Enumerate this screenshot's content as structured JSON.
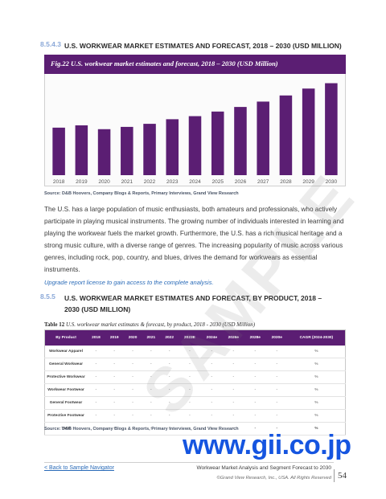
{
  "section1": {
    "number": "8.5.4.3",
    "title": "U.S. WORKWEAR MARKET ESTIMATES AND FORECAST, 2018 – 2030 (USD MILLION)"
  },
  "figure": {
    "caption": "Fig.22 U.S. workwear market estimates and forecast, 2018 – 2030 (USD Million)"
  },
  "chart_data": {
    "type": "bar",
    "categories": [
      "2018",
      "2019",
      "2020",
      "2021",
      "2022",
      "2023",
      "2024",
      "2025",
      "2026",
      "2027",
      "2028",
      "2029",
      "2030"
    ],
    "values": [
      62,
      65,
      60,
      63,
      67,
      73,
      77,
      83,
      89,
      96,
      104,
      113,
      120
    ],
    "ylim": [
      0,
      130
    ],
    "bar_color": "#5b1e73",
    "grid": false,
    "title": "",
    "xlabel": "",
    "ylabel": ""
  },
  "source1": "Source: D&B Hoovers, Company Blogs & Reports, Primary Interviews, Grand View Research",
  "paragraph": "The U.S. has a large population of music enthusiasts, both amateurs and professionals, who actively participate in playing musical instruments. The growing number of individuals interested in learning and playing the workwear fuels the market growth. Furthermore, the U.S. has a rich musical heritage and a strong music culture, with a diverse range of genres. The increasing popularity of music across various genres, including rock, pop, country, and blues, drives the demand for workwears as essential instruments.",
  "upgrade_note": "Upgrade report license to gain access to the complete analysis.",
  "section2": {
    "number": "8.5.5",
    "title": "U.S. WORKWEAR MARKET ESTIMATES AND FORECAST, BY PRODUCT, 2018 – 2030 (USD MILLION)"
  },
  "table": {
    "caption_label": "Table 12",
    "caption_text": "U.S. workwear market estimates & forecast, by product, 2018 - 2030 (USD Million)",
    "headers": [
      "By Product",
      "2018",
      "2019",
      "2020",
      "2021",
      "2022",
      "2023E",
      "2024e",
      "2026e",
      "2028e",
      "2030e",
      "CAGR (2024-2030)"
    ],
    "rows": [
      {
        "label": "Workwear Apparel",
        "cells": [
          "-",
          "-",
          "-",
          "-",
          "-",
          "-",
          "-",
          "-",
          "-",
          "-",
          "%"
        ]
      },
      {
        "label": "General Workwear",
        "cells": [
          "-",
          "-",
          "-",
          "-",
          "-",
          "-",
          "-",
          "-",
          "-",
          "-",
          "%"
        ]
      },
      {
        "label": "Protective Workwear",
        "cells": [
          "-",
          "-",
          "-",
          "-",
          "-",
          "-",
          "-",
          "-",
          "-",
          "-",
          "%"
        ]
      },
      {
        "label": "Workwear Footwear",
        "cells": [
          "-",
          "-",
          "-",
          "-",
          "-",
          "-",
          "-",
          "-",
          "-",
          "-",
          "%"
        ]
      },
      {
        "label": "General Footwear",
        "cells": [
          "-",
          "-",
          "-",
          "-",
          "-",
          "-",
          "-",
          "-",
          "-",
          "-",
          "%"
        ]
      },
      {
        "label": "Protective Footwear",
        "cells": [
          "-",
          "-",
          "-",
          "-",
          "-",
          "-",
          "-",
          "-",
          "-",
          "-",
          "%"
        ]
      },
      {
        "label": "Total",
        "cells": [
          "-",
          "-",
          "-",
          "-",
          "-",
          "-",
          "-",
          "-",
          "-",
          "-",
          "%"
        ]
      }
    ]
  },
  "source2": "Source: D&B Hoovers, Company Blogs & Reports, Primary Interviews, Grand View Research",
  "watermark": "SAMPLE",
  "site_logo": "www.gii.co.jp",
  "footer": {
    "back_link": "< Back to Sample Navigator",
    "report_title": "Workwear Market Analysis and Segment Forecast to 2030",
    "copyright": "©Grand View Research, Inc., USA. All Rights Reserved",
    "page_number": "54"
  }
}
